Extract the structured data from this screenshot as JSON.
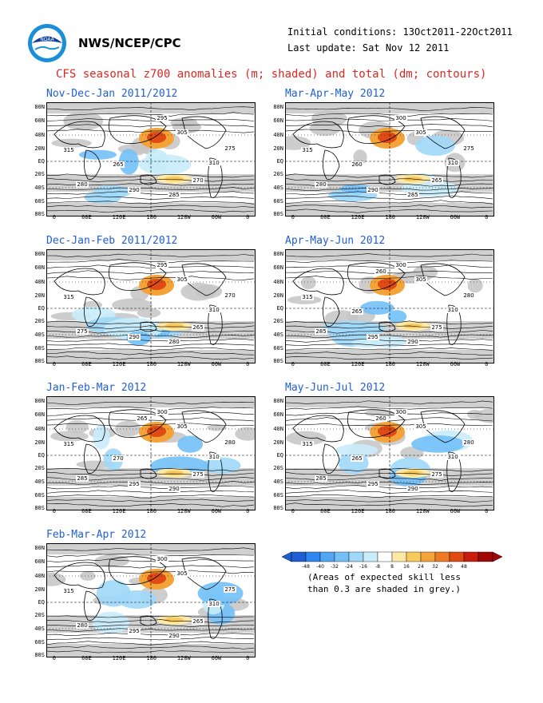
{
  "header": {
    "logo_text": "NOAA",
    "org": "NWS/NCEP/CPC",
    "initial_conditions": "Initial conditions: 13Oct2011-22Oct2011",
    "last_update": "Last update: Sat Nov 12 2011",
    "title": "CFS seasonal z700 anomalies (m; shaded) and total (dm; contours)"
  },
  "colors": {
    "title": "#e4261f",
    "map_title": "#1f5fd6",
    "land": "#ffffff",
    "skill_grey": "#c0c0c0"
  },
  "axes": {
    "lat_labels": [
      "80N",
      "60N",
      "40N",
      "20N",
      "EQ",
      "20S",
      "40S",
      "60S",
      "80S"
    ],
    "lon_labels": [
      "0",
      "60E",
      "120E",
      "180",
      "120W",
      "60W",
      "0"
    ]
  },
  "maps": [
    {
      "title": "Nov-Dec-Jan 2011/2012",
      "contours": [
        "315",
        "310",
        "305",
        "295",
        "290",
        "285",
        "280",
        "275",
        "270",
        "265"
      ]
    },
    {
      "title": "Dec-Jan-Feb 2011/2012",
      "contours": [
        "315",
        "310",
        "305",
        "295",
        "290",
        "280",
        "275",
        "270",
        "265"
      ]
    },
    {
      "title": "Jan-Feb-Mar 2012",
      "contours": [
        "315",
        "310",
        "305",
        "300",
        "295",
        "290",
        "285",
        "280",
        "275",
        "270",
        "265"
      ]
    },
    {
      "title": "Feb-Mar-Apr 2012",
      "contours": [
        "315",
        "310",
        "305",
        "300",
        "295",
        "290",
        "280",
        "275",
        "265"
      ]
    },
    {
      "title": "Mar-Apr-May 2012",
      "contours": [
        "315",
        "310",
        "305",
        "300",
        "290",
        "285",
        "280",
        "275",
        "265",
        "260"
      ]
    },
    {
      "title": "Apr-May-Jun 2012",
      "contours": [
        "315",
        "310",
        "305",
        "300",
        "295",
        "290",
        "285",
        "280",
        "275",
        "265",
        "260"
      ]
    },
    {
      "title": "May-Jun-Jul 2012",
      "contours": [
        "315",
        "310",
        "305",
        "300",
        "295",
        "290",
        "285",
        "280",
        "275",
        "265",
        "260"
      ]
    }
  ],
  "legend": {
    "ticks": [
      "-48",
      "-40",
      "-32",
      "-24",
      "-16",
      "-8",
      "8",
      "16",
      "24",
      "32",
      "40",
      "48"
    ],
    "colors": [
      "#1f5fd6",
      "#2f86f0",
      "#4ea6f5",
      "#73c0f7",
      "#9fd8f8",
      "#c8ecfa",
      "#ffffff",
      "#fde9a5",
      "#f8c95c",
      "#f3a338",
      "#ec7a22",
      "#e04a14",
      "#c81c0c",
      "#a00808"
    ],
    "note_line1": "(Areas of expected skill less",
    "note_line2": "than 0.3 are shaded in grey.)"
  }
}
